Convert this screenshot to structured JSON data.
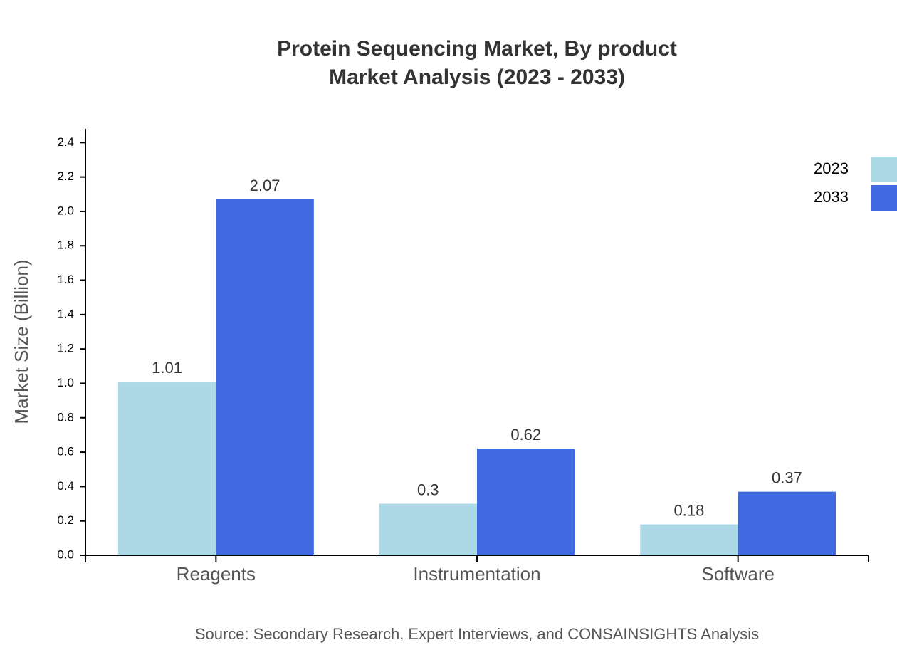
{
  "chart_data": {
    "type": "bar",
    "title": "Protein Sequencing Market, By product",
    "subtitle": "Market Analysis (2023 - 2033)",
    "y_label": "Market Size (Billion)",
    "source": "Source: Secondary Research, Expert Interviews, and CONSAINSIGHTS Analysis",
    "categories": [
      "Reagents",
      "Instrumentation",
      "Software"
    ],
    "series": [
      {
        "name": "2023",
        "color": "#add8e6",
        "values": [
          1.01,
          0.3,
          0.18
        ]
      },
      {
        "name": "2033",
        "color": "#4169e1",
        "values": [
          2.07,
          0.62,
          0.37
        ]
      }
    ],
    "ylim": [
      0,
      2.48
    ],
    "yticks": [
      {
        "value": 0,
        "label": "0.0"
      },
      0.2,
      0.4,
      0.6,
      0.8,
      {
        "value": 1,
        "label": "1.0"
      },
      1.2,
      1.4,
      1.6,
      1.8,
      {
        "value": 2,
        "label": "2.0"
      },
      2.2,
      2.4
    ],
    "legend": "top-right"
  }
}
